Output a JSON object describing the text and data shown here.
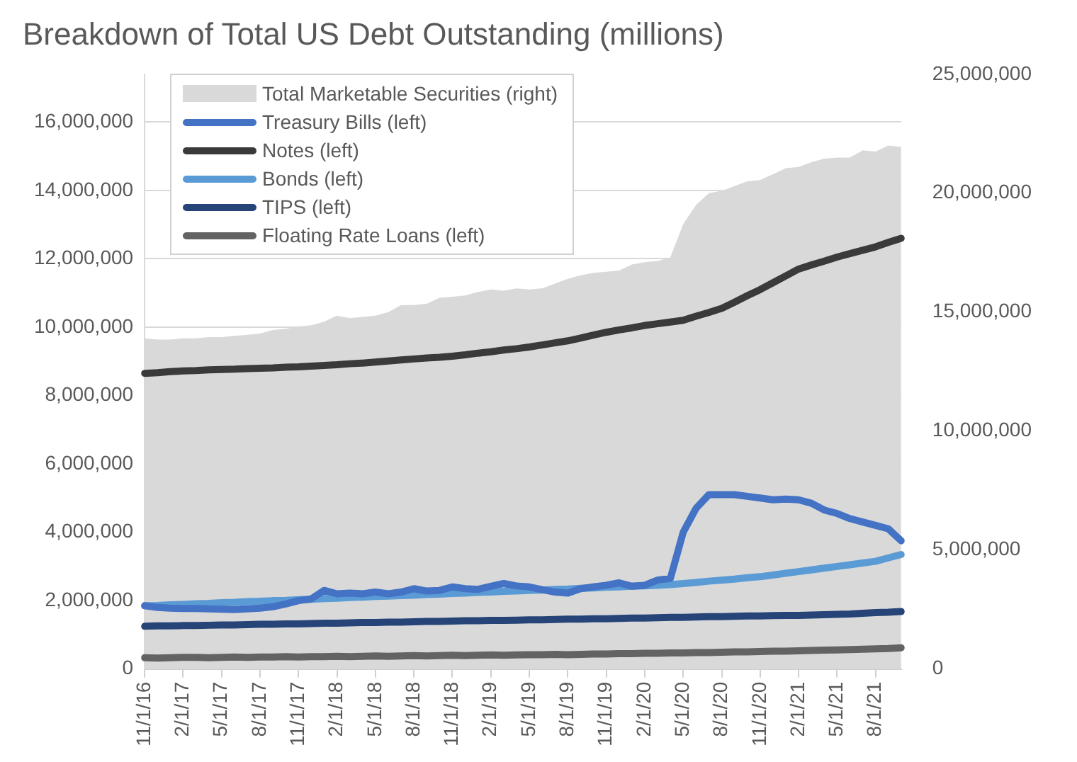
{
  "chart_data": {
    "type": "line",
    "title": "Breakdown of Total US Debt Outstanding (millions)",
    "categories": [
      "11/1/16",
      null,
      null,
      "2/1/17",
      null,
      null,
      "5/1/17",
      null,
      null,
      "8/1/17",
      null,
      null,
      "11/1/17",
      null,
      null,
      "2/1/18",
      null,
      null,
      "5/1/18",
      null,
      null,
      "8/1/18",
      null,
      null,
      "11/1/18",
      null,
      null,
      "2/1/19",
      null,
      null,
      "5/1/19",
      null,
      null,
      "8/1/19",
      null,
      null,
      "11/1/19",
      null,
      null,
      "2/1/20",
      null,
      null,
      "5/1/20",
      null,
      null,
      "8/1/20",
      null,
      null,
      "11/1/20",
      null,
      null,
      "2/1/21",
      null,
      null,
      "5/1/21",
      null,
      null,
      "8/1/21",
      null,
      null
    ],
    "series": [
      {
        "name": "Total Marketable Securities (right)",
        "type": "area",
        "axis": "y2",
        "color": "#d9d9d9",
        "values": [
          13900000,
          13850000,
          13850000,
          13900000,
          13900000,
          13950000,
          13950000,
          14000000,
          14050000,
          14100000,
          14250000,
          14300000,
          14400000,
          14450000,
          14600000,
          14850000,
          14750000,
          14800000,
          14850000,
          15000000,
          15300000,
          15300000,
          15350000,
          15600000,
          15650000,
          15700000,
          15850000,
          15950000,
          15900000,
          16000000,
          15950000,
          16000000,
          16200000,
          16400000,
          16550000,
          16650000,
          16700000,
          16750000,
          17000000,
          17100000,
          17150000,
          17300000,
          18700000,
          19500000,
          20000000,
          20100000,
          20300000,
          20500000,
          20550000,
          20800000,
          21050000,
          21100000,
          21300000,
          21450000,
          21500000,
          21500000,
          21800000,
          21750000,
          22000000,
          21950000
        ]
      },
      {
        "name": "Treasury Bills (left)",
        "color": "#4472c4",
        "values": [
          1850000,
          1800000,
          1780000,
          1770000,
          1770000,
          1760000,
          1750000,
          1740000,
          1760000,
          1780000,
          1820000,
          1900000,
          2000000,
          2050000,
          2300000,
          2200000,
          2220000,
          2200000,
          2250000,
          2200000,
          2250000,
          2350000,
          2280000,
          2300000,
          2400000,
          2350000,
          2330000,
          2420000,
          2500000,
          2430000,
          2400000,
          2320000,
          2250000,
          2220000,
          2350000,
          2400000,
          2450000,
          2520000,
          2420000,
          2450000,
          2600000,
          2650000,
          4000000,
          4700000,
          5100000,
          5100000,
          5100000,
          5050000,
          5000000,
          4950000,
          4970000,
          4950000,
          4850000,
          4650000,
          4550000,
          4400000,
          4300000,
          4200000,
          4100000,
          3750000
        ]
      },
      {
        "name": "Notes (left)",
        "color": "#3a3a3a",
        "values": [
          8650000,
          8670000,
          8700000,
          8720000,
          8730000,
          8750000,
          8760000,
          8770000,
          8790000,
          8800000,
          8810000,
          8830000,
          8840000,
          8860000,
          8880000,
          8900000,
          8930000,
          8950000,
          8980000,
          9010000,
          9040000,
          9070000,
          9100000,
          9120000,
          9150000,
          9190000,
          9240000,
          9280000,
          9330000,
          9370000,
          9420000,
          9480000,
          9540000,
          9600000,
          9680000,
          9770000,
          9850000,
          9920000,
          9980000,
          10050000,
          10100000,
          10150000,
          10200000,
          10320000,
          10430000,
          10550000,
          10730000,
          10920000,
          11100000,
          11300000,
          11500000,
          11700000,
          11820000,
          11930000,
          12050000,
          12150000,
          12250000,
          12350000,
          12480000,
          12600000
        ]
      },
      {
        "name": "Bonds (left)",
        "color": "#5b9bd5",
        "values": [
          1850000,
          1860000,
          1880000,
          1890000,
          1910000,
          1920000,
          1940000,
          1950000,
          1970000,
          1980000,
          2000000,
          2010000,
          2030000,
          2040000,
          2060000,
          2070000,
          2090000,
          2100000,
          2120000,
          2130000,
          2150000,
          2160000,
          2180000,
          2190000,
          2210000,
          2220000,
          2240000,
          2250000,
          2270000,
          2280000,
          2300000,
          2310000,
          2330000,
          2340000,
          2360000,
          2370000,
          2390000,
          2400000,
          2420000,
          2430000,
          2450000,
          2470000,
          2500000,
          2530000,
          2570000,
          2600000,
          2630000,
          2670000,
          2700000,
          2750000,
          2800000,
          2850000,
          2900000,
          2950000,
          3000000,
          3050000,
          3100000,
          3150000,
          3250000,
          3350000
        ]
      },
      {
        "name": "TIPS (left)",
        "color": "#264478",
        "values": [
          1250000,
          1260000,
          1260000,
          1270000,
          1270000,
          1280000,
          1290000,
          1290000,
          1300000,
          1310000,
          1310000,
          1320000,
          1320000,
          1330000,
          1340000,
          1340000,
          1350000,
          1360000,
          1360000,
          1370000,
          1370000,
          1380000,
          1390000,
          1390000,
          1400000,
          1410000,
          1410000,
          1420000,
          1420000,
          1430000,
          1440000,
          1440000,
          1450000,
          1460000,
          1460000,
          1470000,
          1470000,
          1480000,
          1490000,
          1490000,
          1500000,
          1510000,
          1510000,
          1520000,
          1530000,
          1530000,
          1540000,
          1550000,
          1550000,
          1560000,
          1570000,
          1570000,
          1580000,
          1590000,
          1600000,
          1610000,
          1630000,
          1650000,
          1660000,
          1680000
        ]
      },
      {
        "name": "Floating Rate Loans (left)",
        "color": "#636363",
        "values": [
          330000,
          320000,
          330000,
          340000,
          340000,
          330000,
          340000,
          350000,
          340000,
          350000,
          350000,
          360000,
          350000,
          360000,
          360000,
          370000,
          360000,
          370000,
          380000,
          370000,
          380000,
          390000,
          380000,
          390000,
          400000,
          390000,
          400000,
          410000,
          400000,
          410000,
          420000,
          420000,
          430000,
          420000,
          430000,
          440000,
          440000,
          450000,
          450000,
          460000,
          460000,
          470000,
          470000,
          480000,
          480000,
          490000,
          500000,
          500000,
          510000,
          520000,
          520000,
          530000,
          540000,
          550000,
          560000,
          570000,
          580000,
          590000,
          600000,
          620000
        ]
      }
    ],
    "ylim": [
      0,
      17400000
    ],
    "yticks": [
      0,
      {
        "value": 2000000,
        "label": "2,000,000"
      },
      {
        "value": 4000000,
        "label": "4,000,000"
      },
      {
        "value": 6000000,
        "label": "6,000,000"
      },
      {
        "value": 8000000,
        "label": "8,000,000"
      },
      {
        "value": 10000000,
        "label": "10,000,000"
      },
      {
        "value": 12000000,
        "label": "12,000,000"
      },
      {
        "value": 14000000,
        "label": "14,000,000"
      },
      {
        "value": 16000000,
        "label": "16,000,000"
      }
    ],
    "y2lim": [
      0,
      25000000
    ],
    "y2ticks": [
      0,
      {
        "value": 5000000,
        "label": "5,000,000"
      },
      {
        "value": 10000000,
        "label": "10,000,000"
      },
      {
        "value": 15000000,
        "label": "15,000,000"
      },
      {
        "value": 20000000,
        "label": "20,000,000"
      },
      {
        "value": 25000000,
        "label": "25,000,000"
      }
    ],
    "grid": "y",
    "legend": "top left",
    "marker": "none",
    "line_style": "solid"
  }
}
